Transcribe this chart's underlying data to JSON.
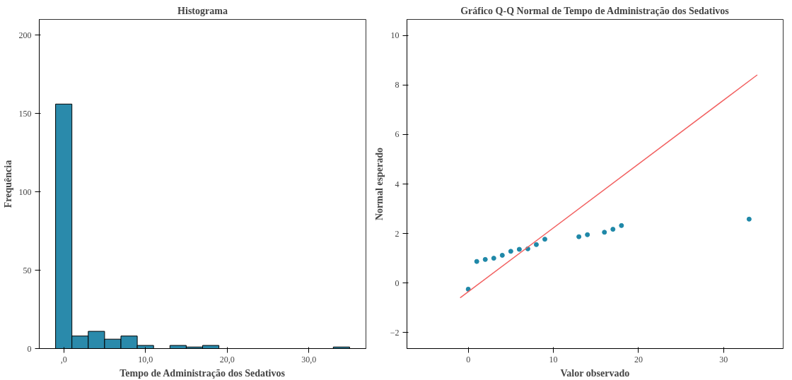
{
  "chart_data": [
    {
      "type": "histogram",
      "title": "Histograma",
      "xlabel": "Tempo de Administração dos Sedativos",
      "ylabel": "Frequência",
      "bins": [
        -1,
        1,
        3,
        5,
        7,
        9,
        11,
        13,
        15,
        17,
        19,
        21,
        23,
        25,
        27,
        29,
        31,
        33,
        35
      ],
      "values": [
        156,
        8,
        11,
        6,
        8,
        2,
        0,
        2,
        1,
        2,
        0,
        0,
        0,
        0,
        0,
        0,
        0,
        1
      ],
      "color": "#2a8aab",
      "xlim": [
        -3,
        37
      ],
      "ylim": [
        0,
        210
      ],
      "xticks": [
        {
          "value": 0,
          "label": ",0"
        },
        {
          "value": 10,
          "label": "10,0"
        },
        {
          "value": 20,
          "label": "20,0"
        },
        {
          "value": 30,
          "label": "30,0"
        }
      ],
      "yticks": [
        0,
        50,
        100,
        150,
        200
      ],
      "grid": false
    },
    {
      "type": "scatter",
      "title": "Gráfico Q-Q Normal de Tempo de Administração dos Sedativos",
      "xlabel": "Valor observado",
      "ylabel": "Normal esperado",
      "series": [
        {
          "type": "scatter",
          "marker": "circle",
          "color": "#1f88a8",
          "x": [
            0,
            1,
            2,
            3,
            4,
            5,
            6,
            7,
            8,
            9,
            13,
            14,
            16,
            17,
            18,
            33
          ],
          "values": [
            -0.25,
            0.87,
            0.95,
            1.0,
            1.12,
            1.28,
            1.36,
            1.38,
            1.55,
            1.77,
            1.87,
            1.95,
            2.05,
            2.17,
            2.32,
            2.58
          ]
        },
        {
          "type": "line",
          "color": "#f26060",
          "x": [
            -0.95,
            33.96
          ],
          "values": [
            -0.6,
            8.41
          ]
        }
      ],
      "line_style": "solid",
      "xlim": [
        -7.2,
        37
      ],
      "ylim": [
        -2.65,
        10.65
      ],
      "xticks": [
        0,
        10,
        20,
        30
      ],
      "yticks": [
        -2,
        0,
        2,
        4,
        6,
        8,
        10
      ],
      "grid": false
    }
  ]
}
